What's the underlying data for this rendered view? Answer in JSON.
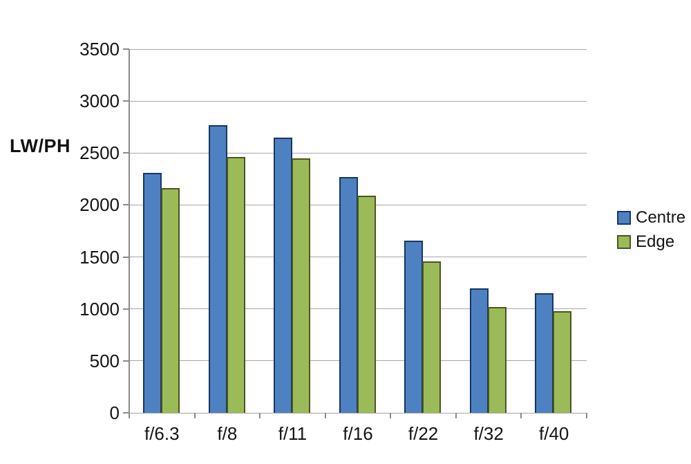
{
  "chart_data": {
    "type": "bar",
    "title": "",
    "ylabel": "LW/PH",
    "xlabel": "",
    "categories": [
      "f/6.3",
      "f/8",
      "f/11",
      "f/16",
      "f/22",
      "f/32",
      "f/40"
    ],
    "series": [
      {
        "name": "Centre",
        "values": [
          2310,
          2770,
          2650,
          2270,
          1660,
          1200,
          1150
        ],
        "fill": "#4e81c2",
        "border": "#17375e"
      },
      {
        "name": "Edge",
        "values": [
          2160,
          2460,
          2450,
          2090,
          1460,
          1020,
          980
        ],
        "fill": "#9bbb59",
        "border": "#4a551e"
      }
    ],
    "ylim": [
      0,
      3500
    ],
    "ytick_step": 500,
    "yticks": [
      0,
      500,
      1000,
      1500,
      2000,
      2500,
      3000,
      3500
    ],
    "grid": true,
    "legend_position": "right",
    "colors": {
      "gridline": "#a6a6a6",
      "axis": "#8a8a8a",
      "text": "#141414",
      "background": "#ffffff"
    }
  }
}
